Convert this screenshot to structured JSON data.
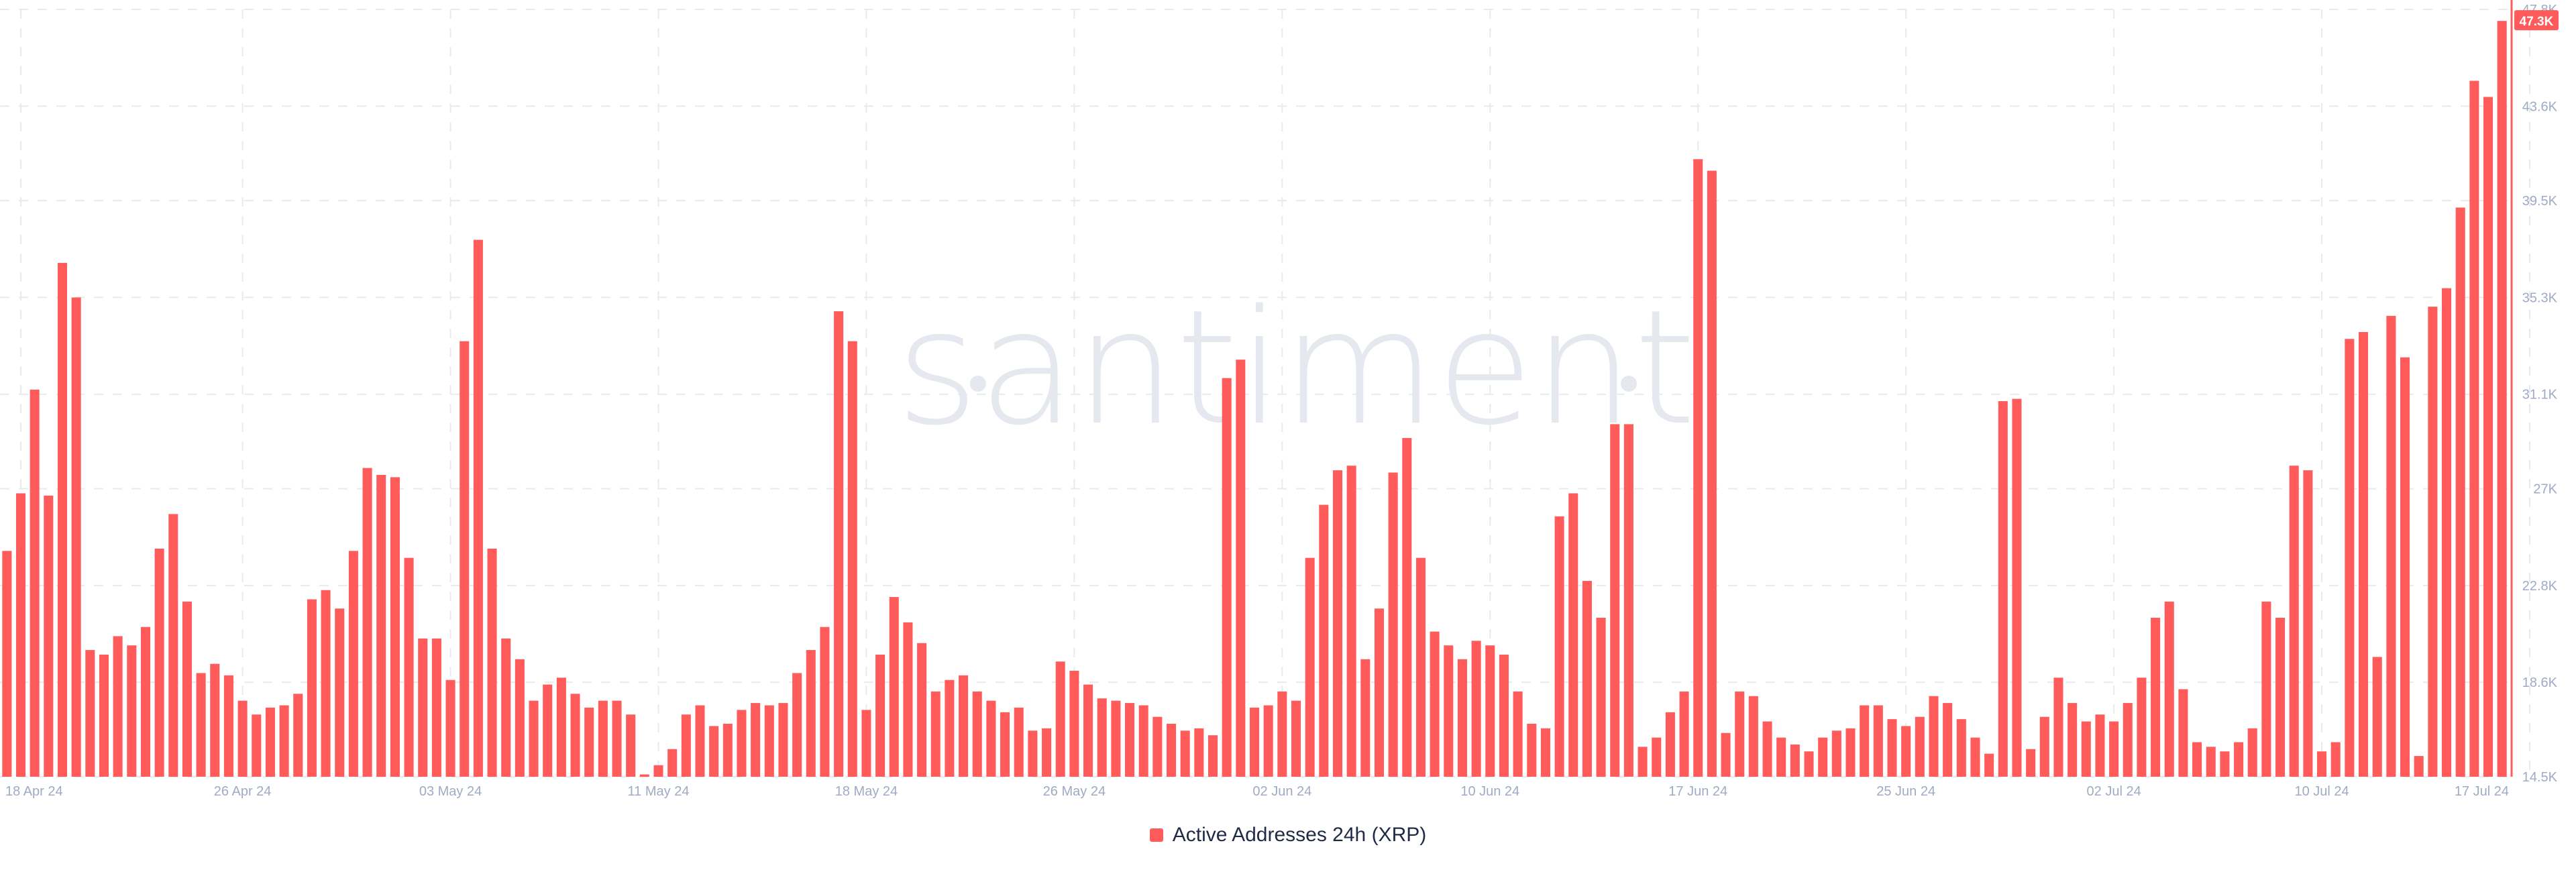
{
  "watermark": "santiment",
  "colors": {
    "bar": "#ff5b5b",
    "grid": "#e8eaee",
    "tick": "#9faac4",
    "axis": "#ff5b5b"
  },
  "legend": {
    "label": "Active Addresses 24h (XRP)"
  },
  "chart_data": {
    "type": "bar",
    "title": "",
    "xlabel": "",
    "ylabel": "",
    "grid": true,
    "legend_position": "bottom-center",
    "y_axis_position": "right",
    "ylim": [
      14500,
      47800
    ],
    "y_tick_values": [
      14500,
      18600,
      22800,
      27000,
      31100,
      35300,
      39500,
      43600,
      47800
    ],
    "y_tick_labels": [
      "14.5K",
      "18.6K",
      "22.8K",
      "27K",
      "31.1K",
      "35.3K",
      "39.5K",
      "43.6K",
      "47.8K"
    ],
    "x_tick_labels": [
      {
        "index": 1,
        "label": "18 Apr 24"
      },
      {
        "index": 17,
        "label": "26 Apr 24"
      },
      {
        "index": 32,
        "label": "03 May 24"
      },
      {
        "index": 47,
        "label": "11 May 24"
      },
      {
        "index": 62,
        "label": "18 May 24"
      },
      {
        "index": 77,
        "label": "26 May 24"
      },
      {
        "index": 92,
        "label": "02 Jun 24"
      },
      {
        "index": 107,
        "label": "10 Jun 24"
      },
      {
        "index": 122,
        "label": "17 Jun 24"
      },
      {
        "index": 137,
        "label": "25 Jun 24"
      },
      {
        "index": 152,
        "label": "02 Jul 24"
      },
      {
        "index": 167,
        "label": "10 Jul 24"
      },
      {
        "index": 182,
        "label": "17 Jul 24"
      }
    ],
    "last_value_label": "47.3K",
    "series": [
      {
        "name": "Active Addresses 24h (XRP)",
        "values": [
          24300,
          26800,
          31300,
          26700,
          36800,
          35300,
          20000,
          19800,
          20600,
          20200,
          21000,
          24400,
          25900,
          22100,
          19000,
          19400,
          18900,
          17800,
          17200,
          17500,
          17600,
          18100,
          22200,
          22600,
          21800,
          24300,
          27900,
          27600,
          27500,
          24000,
          20500,
          20500,
          18700,
          33400,
          37800,
          24400,
          20500,
          19600,
          17800,
          18500,
          18800,
          18100,
          17500,
          17800,
          17800,
          17200,
          14600,
          15000,
          15700,
          17200,
          17600,
          16700,
          16800,
          17400,
          17700,
          17600,
          17700,
          19000,
          20000,
          21000,
          34700,
          33400,
          17400,
          19800,
          22300,
          21200,
          20300,
          18200,
          18700,
          18900,
          18200,
          17800,
          17300,
          17500,
          16500,
          16600,
          19500,
          19100,
          18500,
          17900,
          17800,
          17700,
          17600,
          17100,
          16800,
          16500,
          16600,
          16300,
          31800,
          32600,
          17500,
          17600,
          18200,
          17800,
          24000,
          26300,
          27800,
          28000,
          19600,
          21800,
          27700,
          29200,
          24000,
          20800,
          20200,
          19600,
          20400,
          20200,
          19800,
          18200,
          16800,
          16600,
          25800,
          26800,
          23000,
          21400,
          29800,
          29800,
          15800,
          16200,
          17300,
          18200,
          41300,
          40800,
          16400,
          18200,
          18000,
          16900,
          16200,
          15900,
          15600,
          16200,
          16500,
          16600,
          17600,
          17600,
          17000,
          16700,
          17100,
          18000,
          17700,
          17000,
          16200,
          15500,
          30800,
          30900,
          15700,
          17100,
          18800,
          17700,
          16900,
          17200,
          16900,
          17700,
          18800,
          21400,
          22100,
          18300,
          16000,
          15800,
          15600,
          16000,
          16600,
          22100,
          21400,
          28000,
          27800,
          15600,
          16000,
          33500,
          33800,
          19700,
          34500,
          32700,
          15400,
          34900,
          35700,
          39200,
          44700,
          44000,
          47300
        ]
      }
    ]
  }
}
